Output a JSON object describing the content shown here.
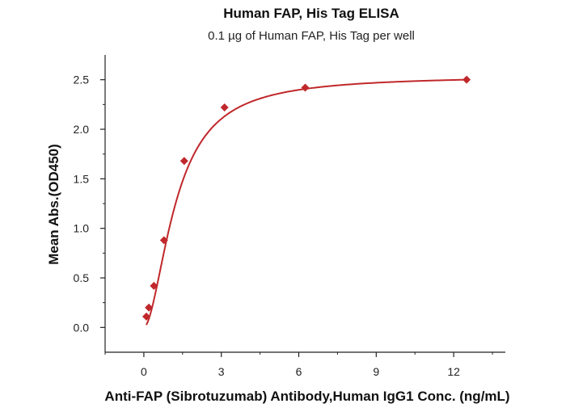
{
  "chart_data": {
    "type": "scatter",
    "title": "Human FAP, His Tag ELISA",
    "subtitle": "0.1 µg of Human FAP, His Tag per well",
    "xlabel": "Anti-FAP (Sibrotuzumab) Antibody,Human IgG1 Conc. (ng/mL)",
    "ylabel": "Mean Abs.(OD450)",
    "xlim": [
      -1.5,
      14
    ],
    "ylim": [
      -0.25,
      2.75
    ],
    "xticks": [
      0,
      3,
      6,
      9,
      12
    ],
    "yticks": [
      0.0,
      0.5,
      1.0,
      1.5,
      2.0,
      2.5
    ],
    "xtick_labels": [
      "0",
      "3",
      "6",
      "9",
      "12"
    ],
    "ytick_labels": [
      "0.0",
      "0.5",
      "1.0",
      "1.5",
      "2.0",
      "2.5"
    ],
    "grid": false,
    "series": [
      {
        "marker": "diamond",
        "color": "#c0282b",
        "x": [
          0.098,
          0.195,
          0.391,
          0.781,
          1.563,
          3.125,
          6.25,
          12.5
        ],
        "y": [
          0.11,
          0.2,
          0.42,
          0.88,
          1.68,
          2.22,
          2.42,
          2.5
        ]
      }
    ],
    "fit_curve": {
      "type": "4PL",
      "color": "#c0282b",
      "bottom": 0.0,
      "top": 2.54,
      "ec50": 1.25,
      "hill": 1.8
    }
  }
}
